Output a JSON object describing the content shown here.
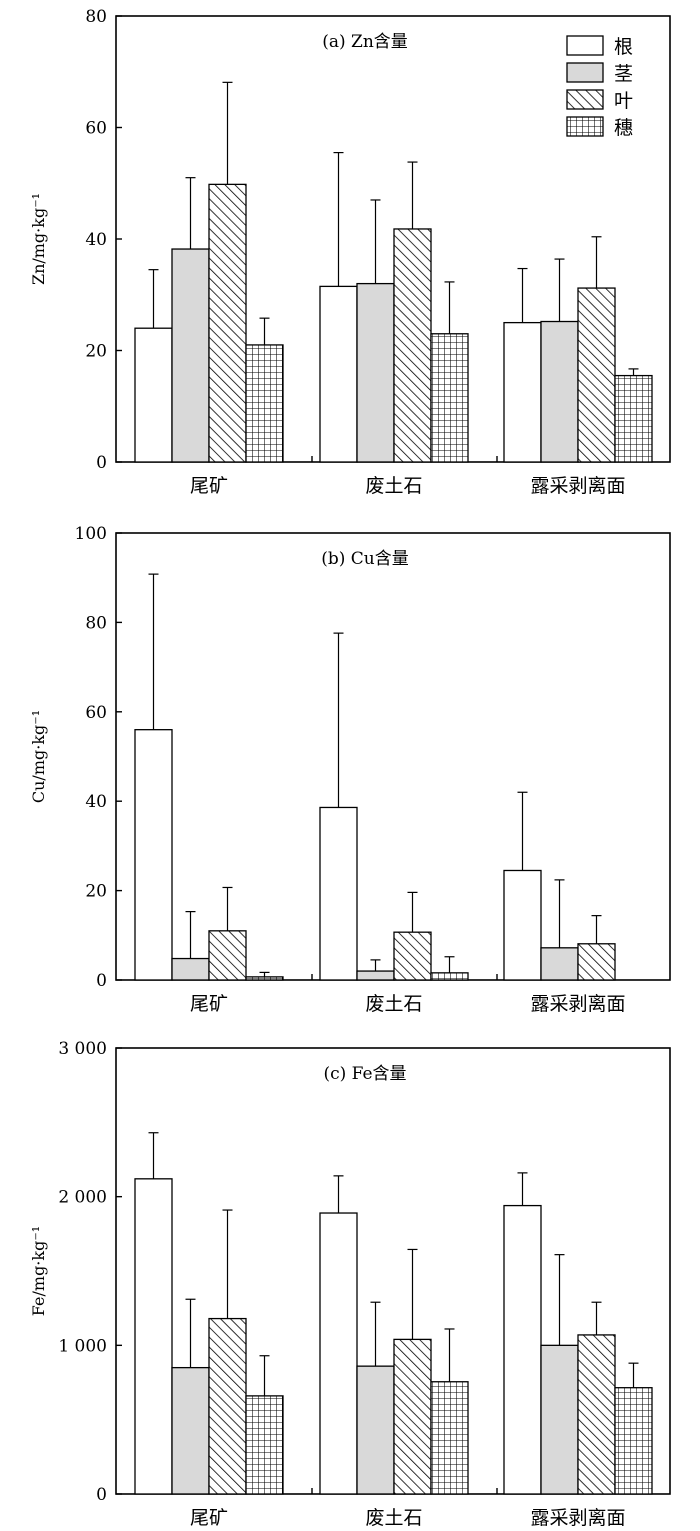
{
  "chart_data": [
    {
      "type": "bar",
      "title": "(a) Zn含量",
      "ylabel": "Zn/mg·kg⁻¹",
      "ylim": [
        0,
        80
      ],
      "yticks": [
        0,
        20,
        40,
        60,
        80
      ],
      "ytick_labels": [
        "0",
        "20",
        "40",
        "60",
        "80"
      ],
      "categories": [
        "尾矿",
        "废土石",
        "露采剥离面"
      ],
      "legend_position": "top-right",
      "series": [
        {
          "name": "根",
          "values": [
            24,
            31.5,
            25
          ],
          "errors": [
            10.5,
            24,
            9.7
          ]
        },
        {
          "name": "茎",
          "values": [
            38.2,
            32,
            25.2
          ],
          "errors": [
            12.8,
            15,
            11.2
          ]
        },
        {
          "name": "叶",
          "values": [
            49.8,
            41.8,
            31.2
          ],
          "errors": [
            18.3,
            12,
            9.2
          ]
        },
        {
          "name": "穗",
          "values": [
            21,
            23,
            15.5
          ],
          "errors": [
            4.8,
            9.3,
            1.2
          ]
        }
      ]
    },
    {
      "type": "bar",
      "title": "(b) Cu含量",
      "ylabel": "Cu/mg·kg⁻¹",
      "ylim": [
        0,
        100
      ],
      "yticks": [
        0,
        20,
        40,
        60,
        80,
        100
      ],
      "ytick_labels": [
        "0",
        "20",
        "40",
        "60",
        "80",
        "100"
      ],
      "categories": [
        "尾矿",
        "废土石",
        "露采剥离面"
      ],
      "series": [
        {
          "name": "根",
          "values": [
            56,
            38.6,
            24.5
          ],
          "errors": [
            34.8,
            39,
            17.5
          ]
        },
        {
          "name": "茎",
          "values": [
            4.8,
            2,
            7.2
          ],
          "errors": [
            10.5,
            2.5,
            15.2
          ]
        },
        {
          "name": "叶",
          "values": [
            11,
            10.7,
            8.1
          ],
          "errors": [
            9.7,
            8.9,
            6.3
          ]
        },
        {
          "name": "穗",
          "values": [
            0.7,
            1.6,
            0
          ],
          "errors": [
            1,
            3.6,
            0
          ]
        }
      ]
    },
    {
      "type": "bar",
      "title": "(c) Fe含量",
      "ylabel": "Fe/mg·kg⁻¹",
      "ylim": [
        0,
        3000
      ],
      "yticks": [
        0,
        1000,
        2000,
        3000
      ],
      "ytick_labels": [
        "0",
        "1 000",
        "2 000",
        "3 000"
      ],
      "categories": [
        "尾矿",
        "废土石",
        "露采剥离面"
      ],
      "series": [
        {
          "name": "根",
          "values": [
            2120,
            1890,
            1940
          ],
          "errors": [
            310,
            250,
            220
          ]
        },
        {
          "name": "茎",
          "values": [
            850,
            860,
            1000
          ],
          "errors": [
            460,
            430,
            610
          ]
        },
        {
          "name": "叶",
          "values": [
            1180,
            1040,
            1070
          ],
          "errors": [
            730,
            605,
            220
          ]
        },
        {
          "name": "穗",
          "values": [
            660,
            755,
            715
          ],
          "errors": [
            270,
            355,
            165
          ]
        }
      ]
    }
  ]
}
